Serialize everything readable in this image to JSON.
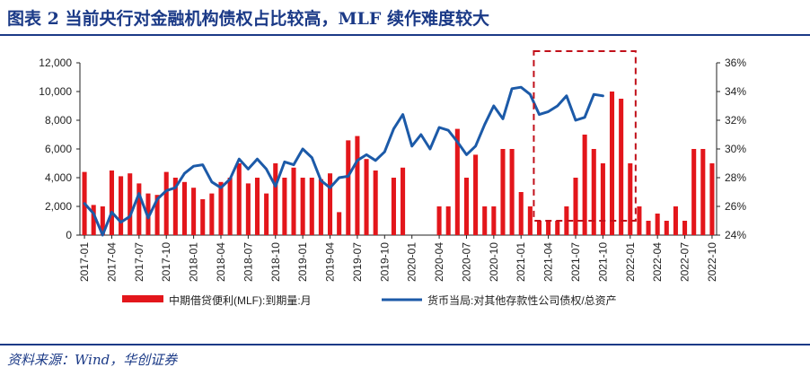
{
  "figure": {
    "title": "图表 2  当前央行对金融机构债权占比较高，MLF 续作难度较大",
    "source": "资料来源：Wind，华创证券"
  },
  "colors": {
    "bar": "#e3161b",
    "line": "#1c5aa8",
    "box": "#c1101a",
    "title": "#1b3a87"
  },
  "chart_data": {
    "type": "bar+line",
    "categories": [
      "2017-01",
      "2017-02",
      "2017-03",
      "2017-04",
      "2017-05",
      "2017-06",
      "2017-07",
      "2017-08",
      "2017-09",
      "2017-10",
      "2017-11",
      "2017-12",
      "2018-01",
      "2018-02",
      "2018-03",
      "2018-04",
      "2018-05",
      "2018-06",
      "2018-07",
      "2018-08",
      "2018-09",
      "2018-10",
      "2018-11",
      "2018-12",
      "2019-01",
      "2019-02",
      "2019-03",
      "2019-04",
      "2019-05",
      "2019-06",
      "2019-07",
      "2019-08",
      "2019-09",
      "2019-10",
      "2019-11",
      "2019-12",
      "2020-01",
      "2020-02",
      "2020-03",
      "2020-04",
      "2020-05",
      "2020-06",
      "2020-07",
      "2020-08",
      "2020-09",
      "2020-10",
      "2020-11",
      "2020-12",
      "2021-01",
      "2021-02",
      "2021-03",
      "2021-04",
      "2021-05",
      "2021-06",
      "2021-07",
      "2021-08",
      "2021-09",
      "2021-10",
      "2021-11",
      "2021-12",
      "2022-01",
      "2022-02",
      "2022-03",
      "2022-04",
      "2022-05",
      "2022-06",
      "2022-07",
      "2022-08",
      "2022-09",
      "2022-10"
    ],
    "tick_labels": [
      "2017-01",
      "2017-04",
      "2017-07",
      "2017-10",
      "2018-01",
      "2018-04",
      "2018-07",
      "2018-10",
      "2019-01",
      "2019-04",
      "2019-07",
      "2019-10",
      "2020-01",
      "2020-04",
      "2020-07",
      "2020-10",
      "2021-01",
      "2021-04",
      "2021-07",
      "2021-10",
      "2022-01",
      "2022-04",
      "2022-07",
      "2022-10"
    ],
    "series": [
      {
        "name": "中期借贷便利(MLF):到期量:月",
        "type": "bar",
        "axis": "left",
        "values": [
          4400,
          2100,
          2000,
          4500,
          4100,
          4300,
          3600,
          2900,
          2800,
          4400,
          4000,
          3700,
          3300,
          2500,
          2900,
          3700,
          4000,
          5000,
          3600,
          4000,
          2900,
          5000,
          4000,
          4700,
          4000,
          4000,
          3900,
          4300,
          1600,
          6600,
          6900,
          5300,
          4500,
          0,
          4000,
          4700,
          0,
          0,
          0,
          2000,
          2000,
          7400,
          4000,
          5600,
          2000,
          2000,
          6000,
          6000,
          3000,
          2000,
          1000,
          1000,
          1000,
          2000,
          4000,
          7000,
          6000,
          5000,
          10000,
          9500,
          5000,
          2000,
          1000,
          1500,
          1000,
          2000,
          1000,
          6000,
          6000,
          5000
        ]
      },
      {
        "name": "货币当局:对其他存款性公司债权/总资产",
        "type": "line",
        "axis": "right",
        "values": [
          26.2,
          25.5,
          24.0,
          25.6,
          24.9,
          25.3,
          26.9,
          25.2,
          26.5,
          27.1,
          27.3,
          28.3,
          28.8,
          28.9,
          27.7,
          27.3,
          27.9,
          29.3,
          28.6,
          29.3,
          28.6,
          27.4,
          29.1,
          28.9,
          30.0,
          29.4,
          27.8,
          27.3,
          28.0,
          28.1,
          29.2,
          29.6,
          29.2,
          29.8,
          31.4,
          32.4,
          30.2,
          31.0,
          30.0,
          31.5,
          31.3,
          30.5,
          29.6,
          30.2,
          31.7,
          33.0,
          32.1,
          34.2,
          34.3,
          33.8,
          32.4,
          32.6,
          33.0,
          33.7,
          32.0,
          32.2,
          33.8,
          33.7,
          null,
          null,
          null,
          null,
          null,
          null,
          null,
          null,
          null,
          null,
          null,
          null
        ]
      }
    ],
    "y_left": {
      "min": 0,
      "max": 12000,
      "ticks": [
        "0",
        "2,000",
        "4,000",
        "6,000",
        "8,000",
        "10,000",
        "12,000"
      ]
    },
    "y_right": {
      "min": 24,
      "max": 36,
      "ticks": [
        "24%",
        "26%",
        "28%",
        "30%",
        "32%",
        "34%",
        "36%"
      ]
    },
    "highlight": {
      "from": "2021-03",
      "to": "2022-01"
    },
    "legend_position": "bottom"
  }
}
